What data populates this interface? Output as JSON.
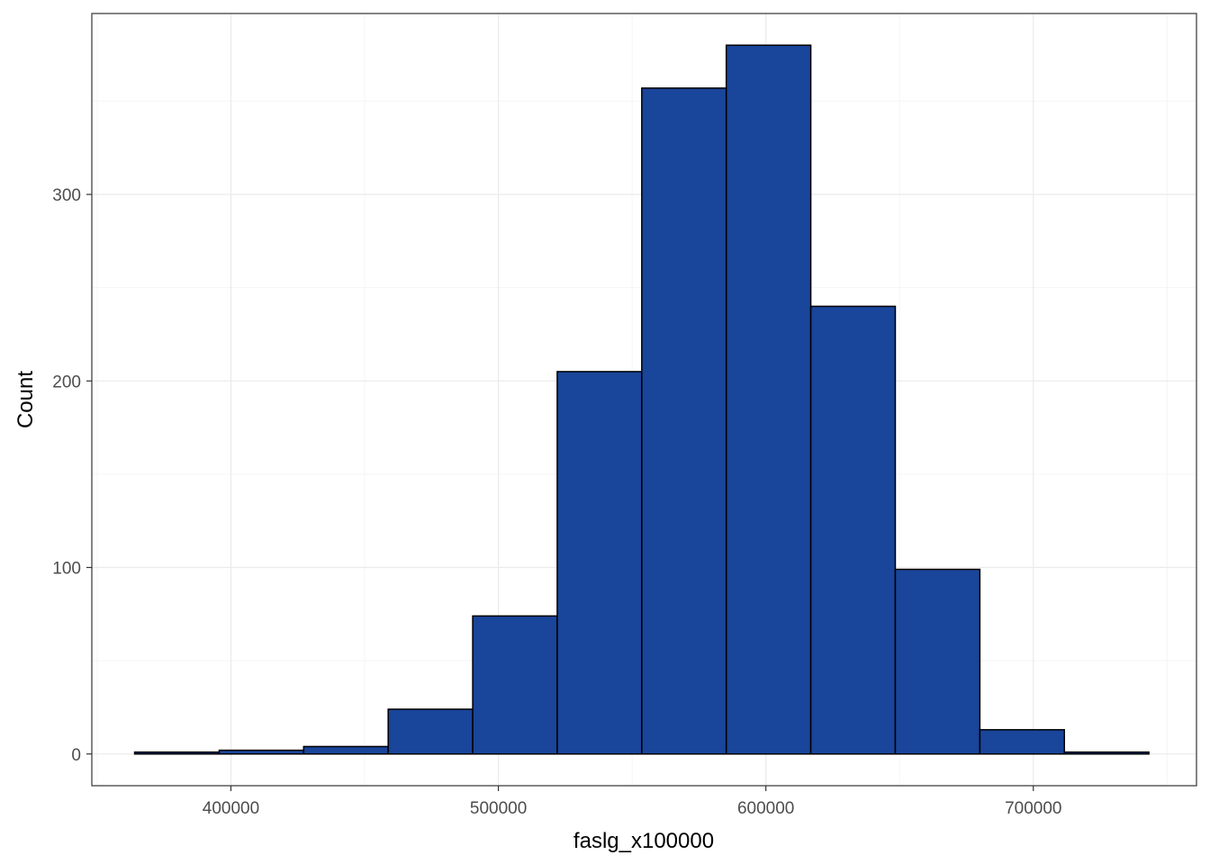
{
  "chart_data": {
    "type": "bar",
    "subtype": "histogram",
    "xlabel": "faslg_x100000",
    "ylabel": "Count",
    "xlim": [
      348000,
      761000
    ],
    "ylim": [
      -17,
      397
    ],
    "x_ticks": [
      400000,
      500000,
      600000,
      700000
    ],
    "x_tick_labels": [
      "400000",
      "500000",
      "600000",
      "700000"
    ],
    "y_ticks": [
      0,
      100,
      200,
      300
    ],
    "y_tick_labels": [
      "0",
      "100",
      "200",
      "300"
    ],
    "grid": true,
    "legend": "none",
    "bins": [
      {
        "x0": 364000,
        "x1": 395600,
        "count": 1
      },
      {
        "x0": 395600,
        "x1": 427200,
        "count": 2
      },
      {
        "x0": 427200,
        "x1": 458800,
        "count": 4
      },
      {
        "x0": 458800,
        "x1": 490400,
        "count": 24
      },
      {
        "x0": 490400,
        "x1": 522000,
        "count": 74
      },
      {
        "x0": 522000,
        "x1": 553600,
        "count": 205
      },
      {
        "x0": 553600,
        "x1": 585200,
        "count": 357
      },
      {
        "x0": 585200,
        "x1": 616800,
        "count": 380
      },
      {
        "x0": 616800,
        "x1": 648400,
        "count": 240
      },
      {
        "x0": 648400,
        "x1": 680000,
        "count": 99
      },
      {
        "x0": 680000,
        "x1": 711600,
        "count": 13
      },
      {
        "x0": 711600,
        "x1": 743200,
        "count": 1
      }
    ]
  },
  "colors": {
    "bar_fill": "#19459a",
    "bar_stroke": "#000000",
    "grid_major": "#ebebeb",
    "grid_minor": "#f5f5f5",
    "panel_border": "#333333",
    "tick_text": "#4d4d4d"
  }
}
